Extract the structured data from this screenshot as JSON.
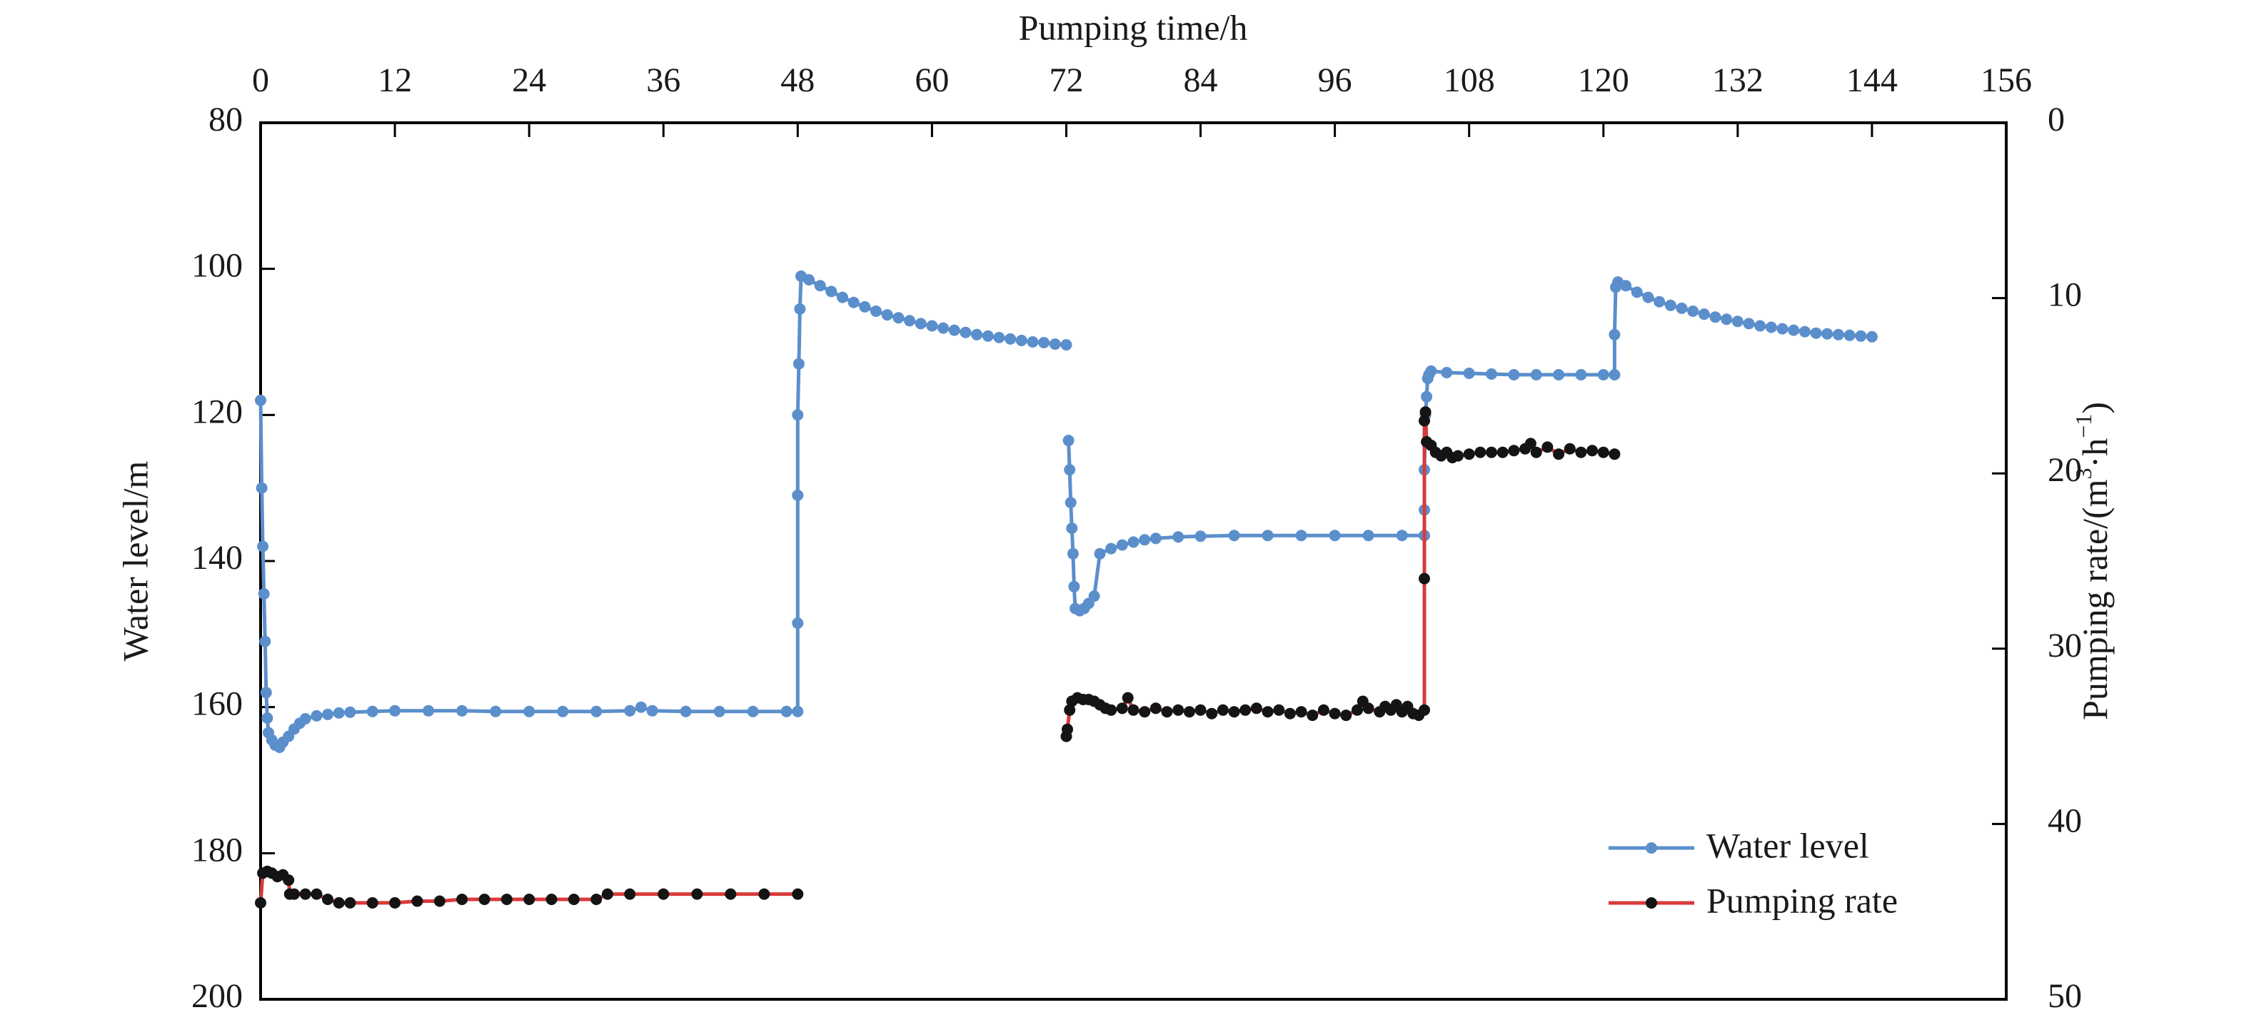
{
  "chart_data": {
    "type": "line",
    "xlabel": "Pumping time/h",
    "ylabel_left": "Water level/m",
    "ylabel_right_prefix": "Pumping rate/(m",
    "ylabel_right_sup1": "3",
    "ylabel_right_mid": "·h",
    "ylabel_right_sup2": "−1",
    "ylabel_right_suffix": ")",
    "x_axis_position": "top",
    "xlim": [
      0,
      156
    ],
    "x_ticks": [
      "0",
      "12",
      "24",
      "36",
      "48",
      "60",
      "72",
      "84",
      "96",
      "108",
      "120",
      "132",
      "144",
      "156"
    ],
    "ylim_left": [
      80,
      200
    ],
    "left_y_reversed": true,
    "left_y_ticks": [
      "80",
      "100",
      "120",
      "140",
      "160",
      "180",
      "200"
    ],
    "ylim_right": [
      0,
      50
    ],
    "right_y_reversed": true,
    "right_y_ticks": [
      "0",
      "10",
      "20",
      "30",
      "40",
      "50"
    ],
    "grid": false,
    "legend_position": "bottom-right",
    "series": [
      {
        "name": "Water level",
        "axis": "left",
        "color": "#5b8fcc",
        "marker_color": "#5b8fcc",
        "segments": [
          [
            [
              0,
              118
            ],
            [
              0.1,
              130
            ],
            [
              0.2,
              138
            ],
            [
              0.3,
              144.5
            ],
            [
              0.4,
              151
            ],
            [
              0.5,
              158
            ],
            [
              0.6,
              161.5
            ],
            [
              0.7,
              163.5
            ],
            [
              1.0,
              164.5
            ],
            [
              1.3,
              165.2
            ],
            [
              1.7,
              165.5
            ],
            [
              2.0,
              164.8
            ],
            [
              2.5,
              164
            ],
            [
              3,
              163
            ],
            [
              3.5,
              162.2
            ],
            [
              4,
              161.6
            ],
            [
              5,
              161.2
            ],
            [
              6,
              161
            ],
            [
              7,
              160.8
            ],
            [
              8,
              160.7
            ],
            [
              10,
              160.6
            ],
            [
              12,
              160.5
            ],
            [
              15,
              160.5
            ],
            [
              18,
              160.5
            ],
            [
              21,
              160.6
            ],
            [
              24,
              160.6
            ],
            [
              27,
              160.6
            ],
            [
              30,
              160.6
            ],
            [
              33,
              160.5
            ],
            [
              34,
              160
            ],
            [
              35,
              160.5
            ],
            [
              38,
              160.6
            ],
            [
              41,
              160.6
            ],
            [
              44,
              160.6
            ],
            [
              47,
              160.6
            ],
            [
              48,
              160.6
            ],
            [
              48,
              148.5
            ],
            [
              48,
              131
            ],
            [
              48,
              120
            ],
            [
              48.1,
              113
            ],
            [
              48.2,
              105.5
            ],
            [
              48.3,
              101
            ],
            [
              49,
              101.5
            ],
            [
              50,
              102.3
            ],
            [
              51,
              103.1
            ],
            [
              52,
              103.9
            ],
            [
              53,
              104.6
            ],
            [
              54,
              105.2
            ],
            [
              55,
              105.8
            ],
            [
              56,
              106.3
            ],
            [
              57,
              106.7
            ],
            [
              58,
              107.1
            ],
            [
              59,
              107.5
            ],
            [
              60,
              107.8
            ],
            [
              61,
              108.1
            ],
            [
              62,
              108.4
            ],
            [
              63,
              108.7
            ],
            [
              64,
              109
            ],
            [
              65,
              109.2
            ],
            [
              66,
              109.4
            ],
            [
              67,
              109.6
            ],
            [
              68,
              109.8
            ],
            [
              69,
              110
            ],
            [
              70,
              110.1
            ],
            [
              71,
              110.3
            ],
            [
              72,
              110.4
            ]
          ],
          [
            [
              72.2,
              123.5
            ],
            [
              72.3,
              127.5
            ],
            [
              72.4,
              132
            ],
            [
              72.5,
              135.5
            ],
            [
              72.6,
              139
            ],
            [
              72.7,
              143.5
            ],
            [
              72.8,
              146.5
            ],
            [
              73.2,
              146.8
            ],
            [
              73.6,
              146.5
            ],
            [
              74,
              145.8
            ],
            [
              74.5,
              144.8
            ],
            [
              75,
              139
            ],
            [
              76,
              138.3
            ],
            [
              77,
              137.8
            ],
            [
              78,
              137.4
            ],
            [
              79,
              137.1
            ],
            [
              80,
              136.9
            ],
            [
              82,
              136.7
            ],
            [
              84,
              136.6
            ],
            [
              87,
              136.5
            ],
            [
              90,
              136.5
            ],
            [
              93,
              136.5
            ],
            [
              96,
              136.5
            ],
            [
              99,
              136.5
            ],
            [
              102,
              136.5
            ],
            [
              104,
              136.5
            ],
            [
              104,
              133
            ],
            [
              104,
              127.5
            ],
            [
              104.1,
              120
            ],
            [
              104.2,
              117.5
            ],
            [
              104.3,
              115
            ],
            [
              104.4,
              114.5
            ],
            [
              104.6,
              114
            ],
            [
              106,
              114.2
            ],
            [
              108,
              114.3
            ],
            [
              110,
              114.4
            ],
            [
              112,
              114.5
            ],
            [
              114,
              114.5
            ],
            [
              116,
              114.5
            ],
            [
              118,
              114.5
            ],
            [
              120,
              114.5
            ],
            [
              121,
              114.5
            ],
            [
              121,
              109
            ],
            [
              121.1,
              102.5
            ],
            [
              121.3,
              101.8
            ],
            [
              122,
              102.3
            ],
            [
              123,
              103.2
            ],
            [
              124,
              103.9
            ],
            [
              125,
              104.5
            ],
            [
              126,
              105
            ],
            [
              127,
              105.4
            ],
            [
              128,
              105.8
            ],
            [
              129,
              106.2
            ],
            [
              130,
              106.6
            ],
            [
              131,
              106.9
            ],
            [
              132,
              107.2
            ],
            [
              133,
              107.5
            ],
            [
              134,
              107.8
            ],
            [
              135,
              108
            ],
            [
              136,
              108.2
            ],
            [
              137,
              108.4
            ],
            [
              138,
              108.6
            ],
            [
              139,
              108.8
            ],
            [
              140,
              108.9
            ],
            [
              141,
              109
            ],
            [
              142,
              109.1
            ],
            [
              143,
              109.2
            ],
            [
              144,
              109.3
            ]
          ]
        ]
      },
      {
        "name": "Pumping rate",
        "axis": "right",
        "color": "#d93a3a",
        "marker_color": "#141414",
        "segments": [
          [
            [
              0,
              44.5
            ],
            [
              0.2,
              42.8
            ],
            [
              0.6,
              42.7
            ],
            [
              1.0,
              42.8
            ],
            [
              1.5,
              43
            ],
            [
              2.0,
              42.9
            ],
            [
              2.5,
              43.2
            ],
            [
              2.6,
              44
            ],
            [
              3,
              44
            ],
            [
              4,
              44
            ],
            [
              5,
              44
            ],
            [
              6,
              44.3
            ],
            [
              7,
              44.5
            ],
            [
              8,
              44.5
            ],
            [
              10,
              44.5
            ],
            [
              12,
              44.5
            ],
            [
              14,
              44.4
            ],
            [
              16,
              44.4
            ],
            [
              18,
              44.3
            ],
            [
              20,
              44.3
            ],
            [
              22,
              44.3
            ],
            [
              24,
              44.3
            ],
            [
              26,
              44.3
            ],
            [
              28,
              44.3
            ],
            [
              30,
              44.3
            ],
            [
              31,
              44
            ],
            [
              33,
              44
            ],
            [
              36,
              44
            ],
            [
              39,
              44
            ],
            [
              42,
              44
            ],
            [
              45,
              44
            ],
            [
              48,
              44
            ]
          ],
          [
            [
              72,
              35
            ],
            [
              72.1,
              34.6
            ],
            [
              72.3,
              33.5
            ],
            [
              72.5,
              33
            ],
            [
              73,
              32.8
            ],
            [
              73.5,
              32.9
            ],
            [
              74,
              32.9
            ],
            [
              74.5,
              33
            ],
            [
              75,
              33.2
            ],
            [
              75.5,
              33.4
            ],
            [
              76,
              33.5
            ],
            [
              77,
              33.4
            ],
            [
              77.5,
              32.8
            ],
            [
              78,
              33.5
            ],
            [
              79,
              33.6
            ],
            [
              80,
              33.4
            ],
            [
              81,
              33.6
            ],
            [
              82,
              33.5
            ],
            [
              83,
              33.6
            ],
            [
              84,
              33.5
            ],
            [
              85,
              33.7
            ],
            [
              86,
              33.5
            ],
            [
              87,
              33.6
            ],
            [
              88,
              33.5
            ],
            [
              89,
              33.4
            ],
            [
              90,
              33.6
            ],
            [
              91,
              33.5
            ],
            [
              92,
              33.7
            ],
            [
              93,
              33.6
            ],
            [
              94,
              33.8
            ],
            [
              95,
              33.5
            ],
            [
              96,
              33.7
            ],
            [
              97,
              33.8
            ],
            [
              98,
              33.5
            ],
            [
              98.5,
              33
            ],
            [
              99,
              33.4
            ],
            [
              100,
              33.6
            ],
            [
              100.5,
              33.3
            ],
            [
              101,
              33.5
            ],
            [
              101.5,
              33.2
            ],
            [
              102,
              33.6
            ],
            [
              102.5,
              33.3
            ],
            [
              103,
              33.7
            ],
            [
              103.5,
              33.8
            ],
            [
              104,
              33.5
            ],
            [
              104,
              26
            ],
            [
              104,
              17
            ],
            [
              104.1,
              16.5
            ],
            [
              104.2,
              18.2
            ],
            [
              104.6,
              18.4
            ],
            [
              105,
              18.8
            ],
            [
              105.5,
              19
            ],
            [
              106,
              18.8
            ],
            [
              106.5,
              19.1
            ],
            [
              107,
              19
            ],
            [
              108,
              18.9
            ],
            [
              109,
              18.8
            ],
            [
              110,
              18.8
            ],
            [
              111,
              18.8
            ],
            [
              112,
              18.7
            ],
            [
              113,
              18.6
            ],
            [
              113.5,
              18.3
            ],
            [
              114,
              18.8
            ],
            [
              115,
              18.5
            ],
            [
              116,
              18.9
            ],
            [
              117,
              18.6
            ],
            [
              118,
              18.8
            ],
            [
              119,
              18.7
            ],
            [
              120,
              18.8
            ],
            [
              121,
              18.9
            ]
          ]
        ]
      }
    ]
  }
}
